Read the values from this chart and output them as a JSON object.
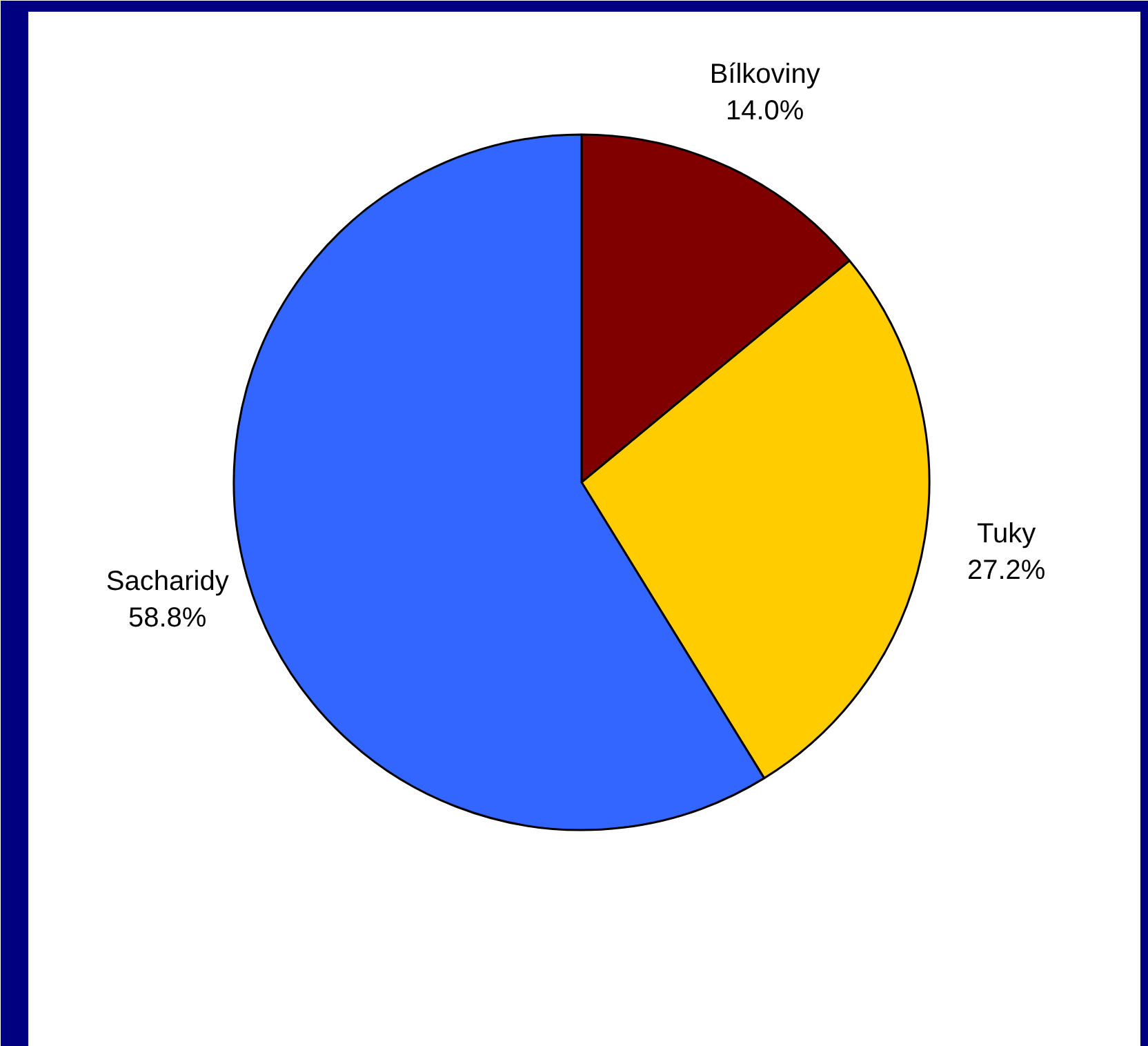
{
  "chart_data": {
    "type": "pie",
    "categories": [
      "Bílkoviny",
      "Tuky",
      "Sacharidy"
    ],
    "values": [
      14.0,
      27.2,
      58.8
    ],
    "colors": [
      "#800000",
      "#ffcc00",
      "#3366ff"
    ],
    "value_labels": [
      "14.0%",
      "27.2%",
      "58.8%"
    ]
  }
}
